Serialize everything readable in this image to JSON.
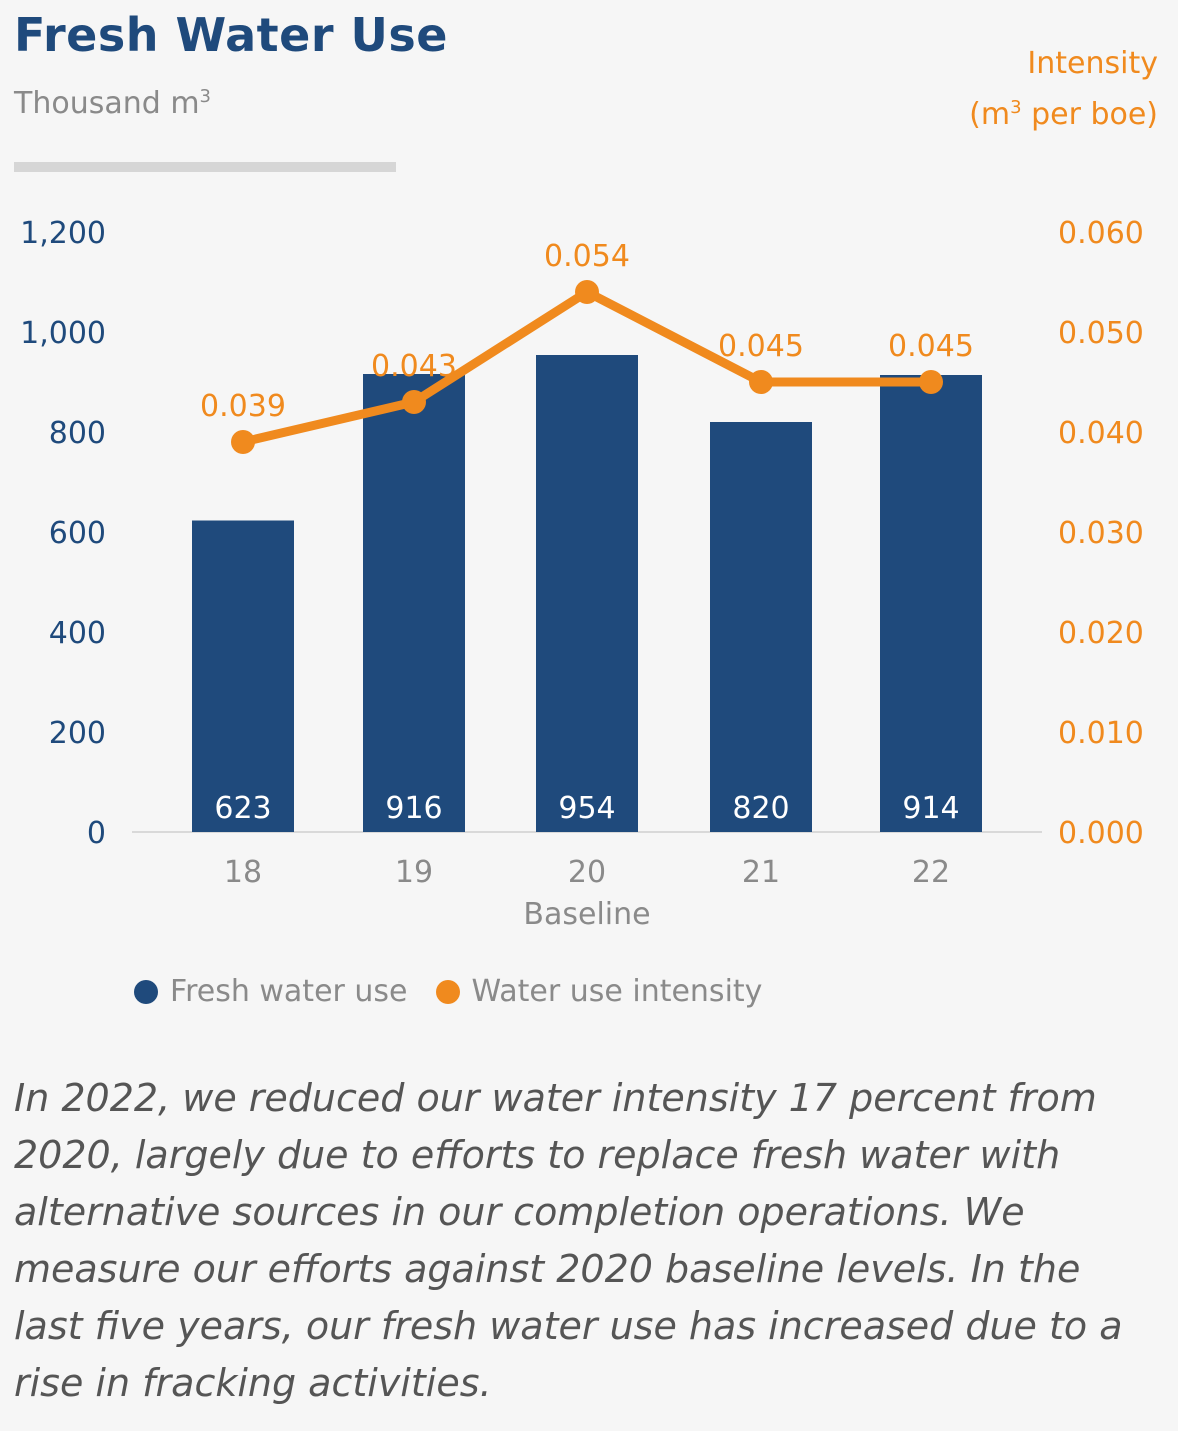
{
  "header": {
    "title": "Fresh Water Use",
    "subtitle_main": "Thousand m",
    "subtitle_sup": "3",
    "right_line1": "Intensity",
    "right_line2_pre": "(m",
    "right_line2_sup": "3",
    "right_line2_post": " per boe)"
  },
  "colors": {
    "bar": "#1f4a7c",
    "line": "#f08a1e",
    "axis_left": "#1f4a7c",
    "axis_right": "#f08a1e"
  },
  "chart_data": {
    "type": "bar",
    "categories": [
      "18",
      "19",
      "20",
      "21",
      "22"
    ],
    "category_sublabels": [
      "",
      "",
      "Baseline",
      "",
      ""
    ],
    "series": [
      {
        "name": "Fresh water use",
        "type": "bar",
        "axis": "left",
        "values": [
          623,
          916,
          954,
          820,
          914
        ]
      },
      {
        "name": "Water use intensity",
        "type": "line",
        "axis": "right",
        "values": [
          0.039,
          0.043,
          0.054,
          0.045,
          0.045
        ]
      }
    ],
    "left_ticks": [
      "0",
      "200",
      "400",
      "600",
      "800",
      "1,000",
      "1,200"
    ],
    "right_ticks": [
      "0.000",
      "0.010",
      "0.020",
      "0.030",
      "0.040",
      "0.050",
      "0.060"
    ],
    "ylim_left": [
      0,
      1200
    ],
    "ylim_right": [
      0,
      0.06
    ],
    "bar_labels": [
      "623",
      "916",
      "954",
      "820",
      "914"
    ],
    "line_labels": [
      "0.039",
      "0.043",
      "0.054",
      "0.045",
      "0.045"
    ],
    "legend": [
      "Fresh water use",
      "Water use intensity"
    ],
    "grid": false,
    "legend_position": "bottom"
  },
  "caption": "In 2022, we reduced our water intensity 17 percent from 2020, largely due to efforts to replace fresh water with alternative sources in our completion operations. We measure our efforts against 2020 baseline levels. In the last five years, our fresh water use has increased due to a rise in fracking activities."
}
